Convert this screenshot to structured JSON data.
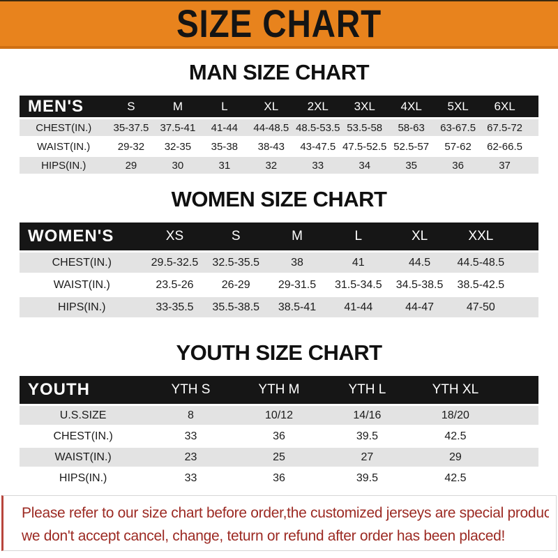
{
  "banner": {
    "title": "SIZE CHART"
  },
  "sections": [
    {
      "name": "mens",
      "heading": "MAN SIZE CHART",
      "table": {
        "header_label": "MEN'S",
        "columns": [
          "S",
          "M",
          "L",
          "XL",
          "2XL",
          "3XL",
          "4XL",
          "5XL",
          "6XL"
        ],
        "rows": [
          {
            "label": "CHEST(IN.)",
            "values": [
              "35-37.5",
              "37.5-41",
              "41-44",
              "44-48.5",
              "48.5-53.5",
              "53.5-58",
              "58-63",
              "63-67.5",
              "67.5-72"
            ]
          },
          {
            "label": "WAIST(IN.)",
            "values": [
              "29-32",
              "32-35",
              "35-38",
              "38-43",
              "43-47.5",
              "47.5-52.5",
              "52.5-57",
              "57-62",
              "62-66.5"
            ]
          },
          {
            "label": "HIPS(IN.)",
            "values": [
              "29",
              "30",
              "31",
              "32",
              "33",
              "34",
              "35",
              "36",
              "37"
            ]
          }
        ]
      }
    },
    {
      "name": "womens",
      "heading": "WOMEN SIZE CHART",
      "table": {
        "header_label": "WOMEN'S",
        "columns": [
          "XS",
          "S",
          "M",
          "L",
          "XL",
          "XXL"
        ],
        "rows": [
          {
            "label": "CHEST(IN.)",
            "values": [
              "29.5-32.5",
              "32.5-35.5",
              "38",
              "41",
              "44.5",
              "44.5-48.5"
            ]
          },
          {
            "label": "WAIST(IN.)",
            "values": [
              "23.5-26",
              "26-29",
              "29-31.5",
              "31.5-34.5",
              "34.5-38.5",
              "38.5-42.5"
            ]
          },
          {
            "label": "HIPS(IN.)",
            "values": [
              "33-35.5",
              "35.5-38.5",
              "38.5-41",
              "41-44",
              "44-47",
              "47-50"
            ]
          }
        ]
      }
    },
    {
      "name": "youth",
      "heading": "YOUTH SIZE CHART",
      "table": {
        "header_label": "YOUTH",
        "columns": [
          "YTH S",
          "YTH M",
          "YTH L",
          "YTH XL"
        ],
        "rows": [
          {
            "label": "U.S.SIZE",
            "values": [
              "8",
              "10/12",
              "14/16",
              "18/20"
            ]
          },
          {
            "label": "CHEST(IN.)",
            "values": [
              "33",
              "36",
              "39.5",
              "42.5"
            ]
          },
          {
            "label": "WAIST(IN.)",
            "values": [
              "23",
              "25",
              "27",
              "29"
            ]
          },
          {
            "label": "HIPS(IN.)",
            "values": [
              "33",
              "36",
              "39.5",
              "42.5"
            ]
          }
        ]
      }
    }
  ],
  "footer": {
    "line1": "Please refer to our size chart before order,the customized jerseys are special products,",
    "line2": "we don't accept cancel, change, teturn or refund after order has been placed!"
  },
  "colors": {
    "banner_orange": "#E8831D",
    "banner_orange_dark": "#CF7013",
    "header_bar_black": "#161616",
    "row_grey": "#E3E3E3",
    "footer_red": "#9C2A23"
  }
}
